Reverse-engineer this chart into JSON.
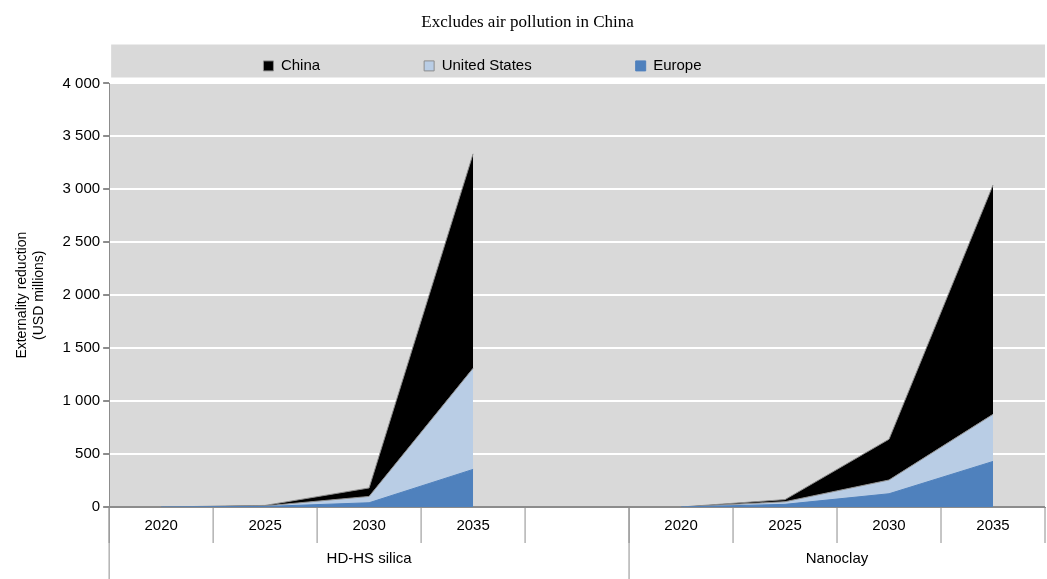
{
  "chart_data": {
    "type": "area",
    "title": "Excludes air pollution in China",
    "ylabel": "Externality reduction\n(USD millions)",
    "categories": [
      "2020",
      "2025",
      "2030",
      "2035",
      null,
      "2020",
      "2025",
      "2030",
      "2035"
    ],
    "stacked": true,
    "series": [
      {
        "name": "Europe",
        "color": "#4f81bd",
        "values": [
          0,
          5,
          40,
          355,
          null,
          0,
          25,
          125,
          430
        ]
      },
      {
        "name": "United States",
        "color": "#b9cde5",
        "values": [
          0,
          5,
          60,
          955,
          null,
          0,
          25,
          130,
          445
        ]
      },
      {
        "name": "China",
        "color": "#000000",
        "values": [
          0,
          5,
          80,
          2025,
          null,
          0,
          20,
          385,
          2165
        ]
      }
    ],
    "ylim": [
      0,
      4000
    ],
    "yticks": [
      0,
      {
        "value": 500,
        "label": "500"
      },
      {
        "value": 1000,
        "label": "1 000"
      },
      {
        "value": 1500,
        "label": "1 500"
      },
      {
        "value": 2000,
        "label": "2 000"
      },
      {
        "value": 2500,
        "label": "2 500"
      },
      {
        "value": 3000,
        "label": "3 000"
      },
      {
        "value": 3500,
        "label": "3 500"
      },
      {
        "value": 4000,
        "label": "4 000"
      }
    ],
    "annotations": [
      "HD-HS silica",
      "Nanoclay"
    ],
    "grid": "y",
    "legend": "top"
  }
}
